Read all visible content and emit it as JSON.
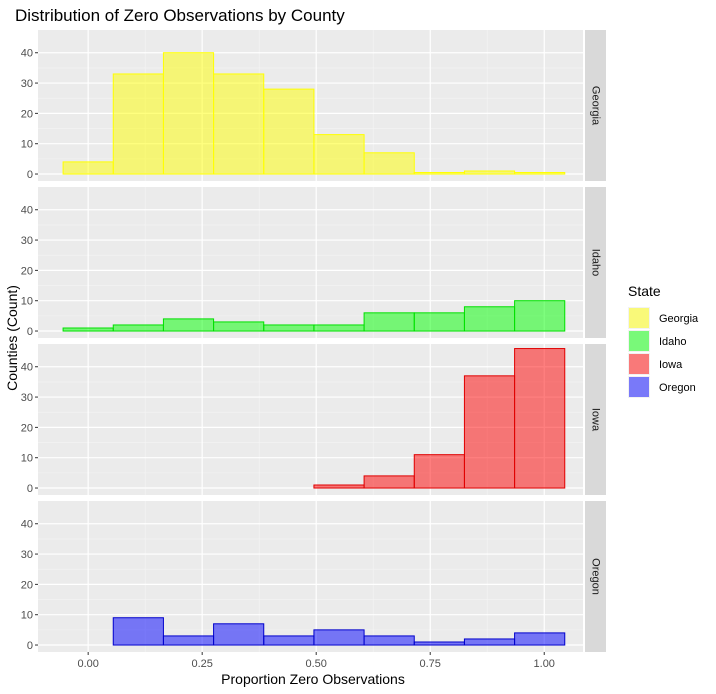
{
  "chart_data": {
    "type": "histogram",
    "title": "Distribution of Zero Observations by County",
    "xlabel": "Proportion Zero Observations",
    "ylabel": "Counties (Count)",
    "xlim": [
      -0.11,
      1.085
    ],
    "ylim": [
      -2.3,
      47.5
    ],
    "x_ticks": [
      0.0,
      0.25,
      0.5,
      0.75,
      1.0
    ],
    "x_tick_labels": [
      "0.00",
      "0.25",
      "0.50",
      "0.75",
      "1.00"
    ],
    "y_ticks": [
      0,
      10,
      20,
      30,
      40
    ],
    "y_tick_labels": [
      "0",
      "10",
      "20",
      "30",
      "40"
    ],
    "bin_edges": [
      -0.055,
      0.055,
      0.165,
      0.275,
      0.385,
      0.495,
      0.605,
      0.715,
      0.825,
      0.935,
      1.045
    ],
    "grid": true,
    "legend_position": "right",
    "legend_title": "State",
    "facets": [
      {
        "name": "Georgia",
        "fill": "#FFFF00",
        "stroke": "#FFFF00",
        "counts": [
          4,
          33,
          40,
          33,
          28,
          13,
          7,
          0.5,
          1,
          0.5
        ]
      },
      {
        "name": "Idaho",
        "fill": "#00FF00",
        "stroke": "#00E000",
        "counts": [
          1,
          2,
          4,
          3,
          2,
          2,
          6,
          6,
          8,
          10
        ]
      },
      {
        "name": "Iowa",
        "fill": "#FF0000",
        "stroke": "#E00000",
        "counts": [
          0,
          0,
          0,
          0,
          0,
          1,
          4,
          11,
          37,
          46
        ]
      },
      {
        "name": "Oregon",
        "fill": "#0000FF",
        "stroke": "#0000CC",
        "counts": [
          0,
          9,
          3,
          7,
          3,
          5,
          3,
          1,
          2,
          4
        ]
      }
    ]
  }
}
